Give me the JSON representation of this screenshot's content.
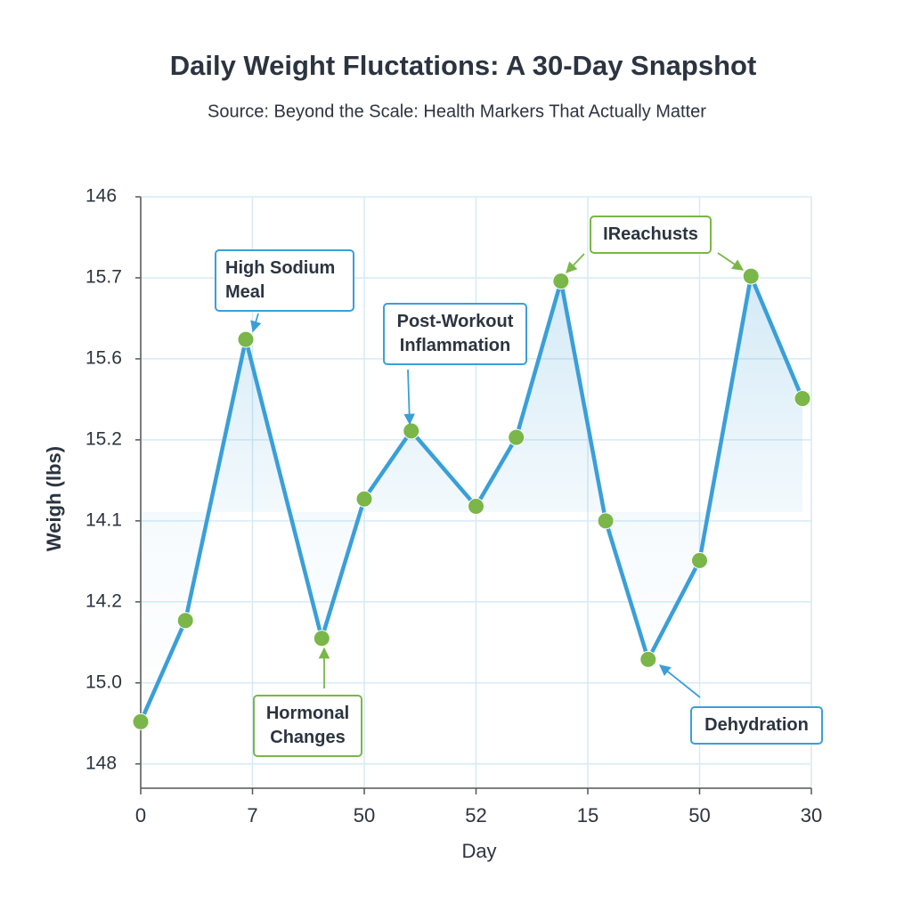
{
  "chart_data": {
    "type": "line",
    "title": "Daily Weight Fluctations: A 30-Day Snapshot",
    "subtitle": "Source: Beyond the Scale: Health Markers That Actually Matter",
    "x_label": "Day",
    "y_label": "Weigh (lbs)",
    "x": [
      0,
      2,
      4.7,
      8.1,
      10,
      12.1,
      15,
      16.8,
      18.8,
      20.8,
      22.7,
      25,
      27.3,
      29.6
    ],
    "series": [
      {
        "name": "Weight",
        "color": "#3a9fd8",
        "marker_color": "#7ab648",
        "values": [
          0.52,
          1.77,
          5.24,
          1.55,
          3.27,
          4.11,
          3.18,
          4.03,
          5.96,
          3.0,
          1.29,
          2.51,
          6.02,
          4.51
        ]
      }
    ],
    "xlim": [
      0,
      30
    ],
    "xticks": [
      0,
      {
        "value": 5,
        "label": "7"
      },
      {
        "value": 10,
        "label": "50"
      },
      {
        "value": 15,
        "label": "52"
      },
      {
        "value": 20,
        "label": "15"
      },
      {
        "value": 25,
        "label": "50"
      },
      30
    ],
    "ylim": [
      -0.3,
      7
    ],
    "yticks": [
      {
        "value": 0,
        "label": "148"
      },
      {
        "value": 1,
        "label": "15.0"
      },
      {
        "value": 2,
        "label": "14.2"
      },
      {
        "value": 3,
        "label": "14.1"
      },
      {
        "value": 4,
        "label": "15.2"
      },
      {
        "value": 5,
        "label": "15.6"
      },
      {
        "value": 6,
        "label": "15.7"
      },
      {
        "value": 7,
        "label": "146"
      }
    ],
    "grid": true,
    "annotations": [
      {
        "text": "High Sodium Meal",
        "color": "blue"
      },
      {
        "text": "Post-Workout Inflammation",
        "color": "blue"
      },
      {
        "text": "IReachusts",
        "color": "green"
      },
      {
        "text": "Hormonal Changes",
        "color": "green"
      },
      {
        "text": "Dehydration",
        "color": "blue"
      }
    ]
  }
}
